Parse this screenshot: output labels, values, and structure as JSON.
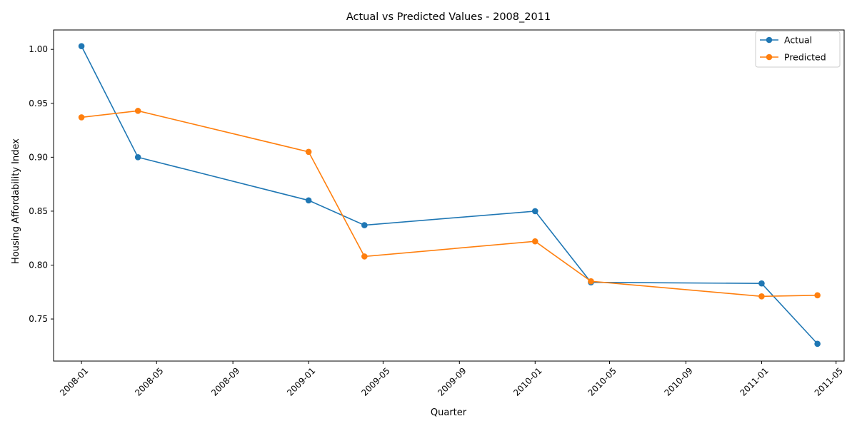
{
  "chart_data": {
    "type": "line",
    "title": "Actual vs Predicted Values - 2008_2011",
    "xlabel": "Quarter",
    "ylabel": "Housing Affordability Index",
    "x_dates": [
      "2008-01-01",
      "2008-04-01",
      "2009-01-01",
      "2009-04-01",
      "2010-01-01",
      "2010-04-01",
      "2011-01-01",
      "2011-04-01"
    ],
    "series": [
      {
        "name": "Actual",
        "color": "#1f77b4",
        "values": [
          1.003,
          0.9,
          0.86,
          0.837,
          0.85,
          0.784,
          0.783,
          0.727
        ]
      },
      {
        "name": "Predicted",
        "color": "#ff7f0e",
        "values": [
          0.937,
          0.943,
          0.905,
          0.808,
          0.822,
          0.785,
          0.771,
          0.772
        ]
      }
    ],
    "x_ticks": [
      "2008-01",
      "2008-05",
      "2008-09",
      "2009-01",
      "2009-05",
      "2009-09",
      "2010-01",
      "2010-05",
      "2010-09",
      "2011-01",
      "2011-05"
    ],
    "y_ticks": [
      "0.75",
      "0.80",
      "0.85",
      "0.90",
      "0.95",
      "1.00"
    ],
    "ylim": [
      0.711,
      1.018
    ],
    "xlim": [
      "2007-11-17",
      "2011-05-14"
    ],
    "legend_position": "top-right",
    "grid": false,
    "marker": "circle",
    "x_tick_rotation": "45deg"
  }
}
